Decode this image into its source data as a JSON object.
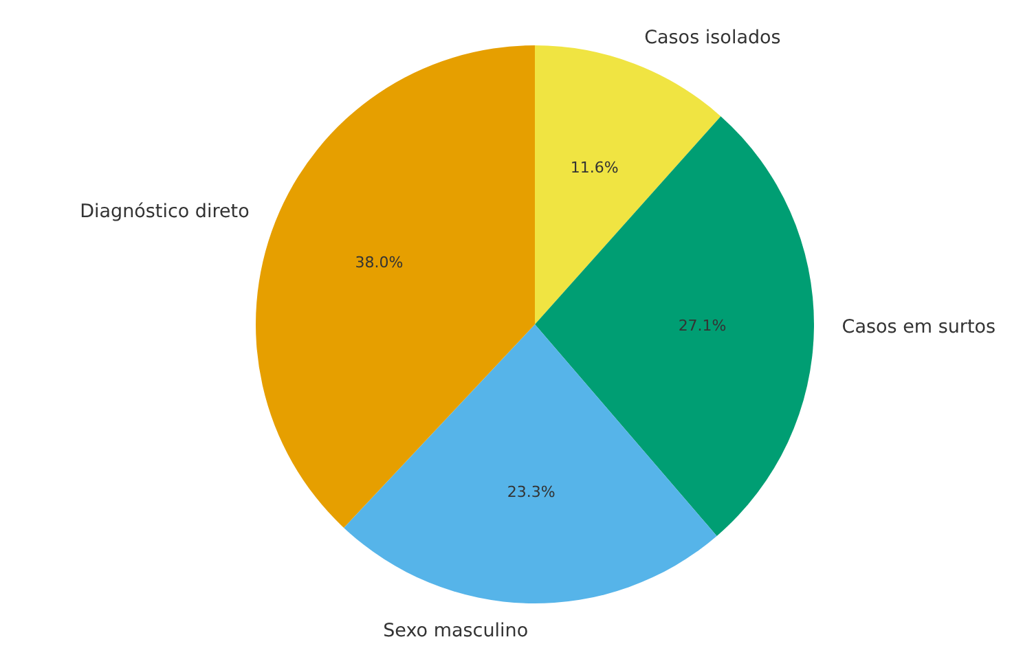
{
  "chart_data": {
    "type": "pie",
    "categories": [
      "Casos isolados",
      "Casos em surtos",
      "Sexo masculino",
      "Diagnóstico direto"
    ],
    "values": [
      11.6,
      27.1,
      23.3,
      38.0
    ],
    "colors": [
      "#f0e442",
      "#009e73",
      "#56b4e9",
      "#e69f00"
    ],
    "value_labels": [
      "11.6%",
      "27.1%",
      "23.3%",
      "38.0%"
    ]
  }
}
